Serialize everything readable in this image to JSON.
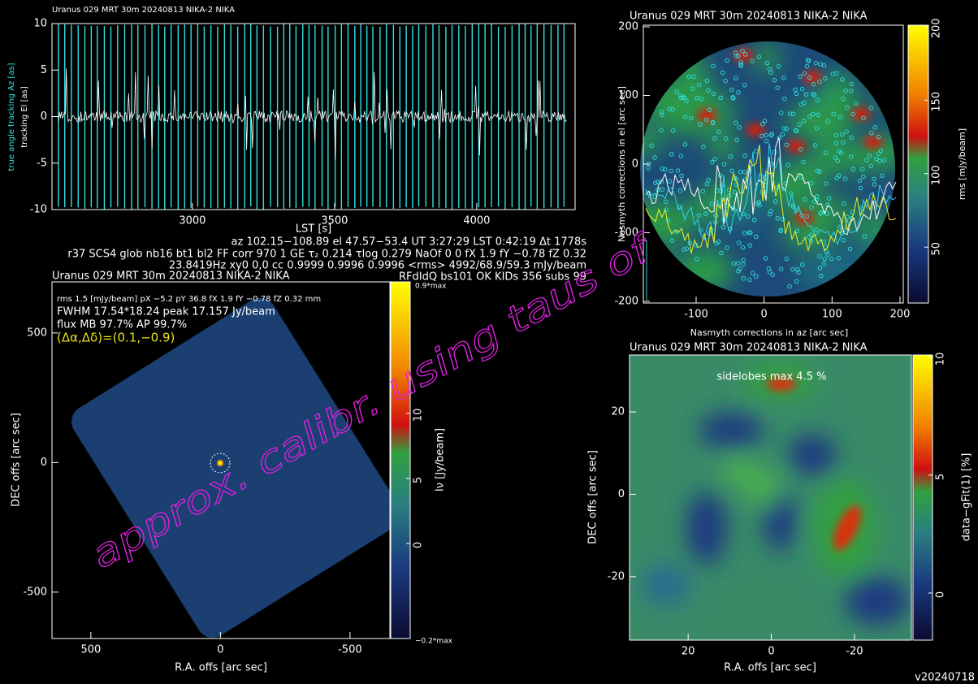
{
  "timeline": {
    "title": "Uranus   029 MRT 30m  20240813 NIKA-2 NIKA",
    "ylabel_az": "true angle tracking Az [as]",
    "ylabel_el": "tracking El [as]",
    "xlabel": "LST [s]",
    "xlim": [
      2506,
      4346
    ],
    "ylim": [
      -10,
      10
    ],
    "xticks": [
      3000,
      3500,
      4000
    ],
    "yticks": [
      10,
      5,
      0,
      -5,
      -10
    ]
  },
  "info": [
    "az 102.15−108.89 el 47.57−53.4 UT 3:27:29 LST 0:42:19 Δt 1778s",
    "r37 SCS4 glob nb16 bt1 bl2 FF corr 970 1 GE τ₂ 0.214 τlog 0.279 NaOf 0 0 fX 1.9 fY −0.78 fZ 0.32",
    "23.8419Hz xy0 0,0 cc 0.9999 0.9996 0.9996 <rms> 4992/68.9/59.3 mJy/beam",
    "RFdIdQ bs101 OK KIDs 356 subs 99"
  ],
  "map": {
    "title": "Uranus   029 MRT 30m  20240813 NIKA-2 NIKA",
    "stats": [
      "rms 1.5 [mJy/beam] pX −5.2 pY 36.8 fX 1.9 fY −0.78 fZ 0.32 mm",
      "FWHM 17.54*18.24 peak 17.157 Jy/beam",
      "flux MB 97.7% AP 99.7%",
      "(Δα,Δδ)=(0.1,−0.9)"
    ],
    "xlabel": "R.A. offs [arc sec]",
    "ylabel": "DEC offs [arc sec]",
    "xlim": [
      650,
      -654
    ],
    "ylim": [
      -679,
      697
    ],
    "xticks": [
      500,
      0,
      -500
    ],
    "yticks": [
      500,
      0,
      -500
    ],
    "colorbar_label": "Iν [Jy/beam]",
    "clim": [
      -7.3,
      20.1
    ],
    "cticks": [
      10,
      5,
      0
    ],
    "cbar_top": "0.9*max",
    "cbar_bottom": "−0.2*max"
  },
  "nasmyth": {
    "title": "Uranus   029 MRT 30m  20240813 NIKA-2 NIKA",
    "xlabel": "Nasmyth corrections in az [arc sec]",
    "ylabel": "Nasmyth corrections in el [arc sec]",
    "xlim": [
      -177.7,
      204.8
    ],
    "ylim": [
      -202.4,
      202.4
    ],
    "xticks": [
      -100,
      0,
      100,
      200
    ],
    "yticks": [
      200,
      100,
      0,
      -100,
      -200
    ],
    "colorbar_label": "rms [mJy/beam]",
    "clim": [
      12,
      201
    ],
    "cticks": [
      200,
      150,
      100,
      50
    ]
  },
  "residual": {
    "title": "Uranus   029 MRT 30m  20240813 NIKA-2 NIKA",
    "annotation": "sidelobes max 4.5 %",
    "xlabel": "R.A. offs [arc sec]",
    "ylabel": "DEC offs [arc sec]",
    "xlim": [
      34.1,
      -33.7
    ],
    "ylim": [
      -35.4,
      33.8
    ],
    "xticks": [
      20,
      0,
      -20
    ],
    "yticks": [
      20,
      0,
      -20
    ],
    "colorbar_label": "data−gFit(1) [%]",
    "clim": [
      -2,
      10.1
    ],
    "cticks": [
      10,
      5,
      0
    ]
  },
  "watermark": "approx. calibr. using taus of",
  "version": "v20240718"
}
